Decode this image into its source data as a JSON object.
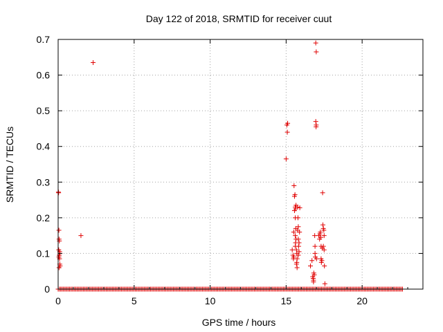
{
  "chart_data": {
    "type": "scatter",
    "title": "Day 122 of 2018, SRMTID for receiver cuut",
    "xlabel": "GPS time / hours",
    "ylabel": "SRMTID / TECUs",
    "xlim": [
      0,
      24
    ],
    "ylim": [
      0,
      0.7
    ],
    "xticks": [
      0,
      5,
      10,
      15,
      20
    ],
    "yticks": [
      0,
      0.1,
      0.2,
      0.3,
      0.4,
      0.5,
      0.6,
      0.7
    ],
    "xtick_labels": [
      "0",
      "5",
      "10",
      "15",
      "20"
    ],
    "ytick_labels": [
      "0",
      "0.1",
      "0.2",
      "0.3",
      "0.4",
      "0.5",
      "0.6",
      "0.7"
    ],
    "grid": true,
    "marker": "+",
    "series": [
      {
        "name": "SRMTID",
        "color": "#e00000",
        "points": [
          [
            0.02,
            0.272
          ],
          [
            0.03,
            0.27
          ],
          [
            0.05,
            0.165
          ],
          [
            0.06,
            0.14
          ],
          [
            0.08,
            0.135
          ],
          [
            0.04,
            0.11
          ],
          [
            0.1,
            0.105
          ],
          [
            0.07,
            0.095
          ],
          [
            0.12,
            0.1
          ],
          [
            0.05,
            0.09
          ],
          [
            0.09,
            0.085
          ],
          [
            0.11,
            0.07
          ],
          [
            0.13,
            0.065
          ],
          [
            0.06,
            0.06
          ],
          [
            1.5,
            0.15
          ],
          [
            2.3,
            0.635
          ],
          [
            15.0,
            0.365
          ],
          [
            15.05,
            0.46
          ],
          [
            15.1,
            0.465
          ],
          [
            15.08,
            0.44
          ],
          [
            15.4,
            0.11
          ],
          [
            15.45,
            0.095
          ],
          [
            15.5,
            0.09
          ],
          [
            15.48,
            0.085
          ],
          [
            15.5,
            0.16
          ],
          [
            15.52,
            0.29
          ],
          [
            15.55,
            0.26
          ],
          [
            15.58,
            0.265
          ],
          [
            15.6,
            0.23
          ],
          [
            15.55,
            0.22
          ],
          [
            15.62,
            0.225
          ],
          [
            15.65,
            0.235
          ],
          [
            15.6,
            0.2
          ],
          [
            15.63,
            0.17
          ],
          [
            15.6,
            0.15
          ],
          [
            15.65,
            0.14
          ],
          [
            15.62,
            0.13
          ],
          [
            15.6,
            0.12
          ],
          [
            15.68,
            0.11
          ],
          [
            15.7,
            0.1
          ],
          [
            15.72,
            0.085
          ],
          [
            15.7,
            0.075
          ],
          [
            15.68,
            0.07
          ],
          [
            15.72,
            0.06
          ],
          [
            15.75,
            0.23
          ],
          [
            15.78,
            0.2
          ],
          [
            15.8,
            0.175
          ],
          [
            15.75,
            0.165
          ],
          [
            15.8,
            0.14
          ],
          [
            15.85,
            0.13
          ],
          [
            15.82,
            0.12
          ],
          [
            15.85,
            0.105
          ],
          [
            15.8,
            0.095
          ],
          [
            15.88,
            0.16
          ],
          [
            15.9,
            0.228
          ],
          [
            16.6,
            0.065
          ],
          [
            16.7,
            0.08
          ],
          [
            16.75,
            0.035
          ],
          [
            16.78,
            0.03
          ],
          [
            16.8,
            0.025
          ],
          [
            16.82,
            0.045
          ],
          [
            16.85,
            0.04
          ],
          [
            16.8,
            0.02
          ],
          [
            16.88,
            0.15
          ],
          [
            16.9,
            0.1
          ],
          [
            16.92,
            0.09
          ],
          [
            16.95,
            0.47
          ],
          [
            16.97,
            0.455
          ],
          [
            16.98,
            0.46
          ],
          [
            16.95,
            0.69
          ],
          [
            16.98,
            0.665
          ],
          [
            17.0,
            0.085
          ],
          [
            16.9,
            0.12
          ],
          [
            17.15,
            0.15
          ],
          [
            17.2,
            0.14
          ],
          [
            17.22,
            0.155
          ],
          [
            17.25,
            0.16
          ],
          [
            17.28,
            0.145
          ],
          [
            17.3,
            0.085
          ],
          [
            17.32,
            0.075
          ],
          [
            17.35,
            0.08
          ],
          [
            17.3,
            0.12
          ],
          [
            17.38,
            0.115
          ],
          [
            17.4,
            0.27
          ],
          [
            17.42,
            0.18
          ],
          [
            17.45,
            0.17
          ],
          [
            17.48,
            0.165
          ],
          [
            17.5,
            0.15
          ],
          [
            17.45,
            0.12
          ],
          [
            17.5,
            0.11
          ],
          [
            17.52,
            0.065
          ],
          [
            17.55,
            0.015
          ]
        ]
      }
    ],
    "zero_band": {
      "name": "near-zero SRMTID samples",
      "y": 0,
      "x_start": 0.0,
      "x_end": 22.7,
      "spacing_hours": 0.0833
    }
  }
}
